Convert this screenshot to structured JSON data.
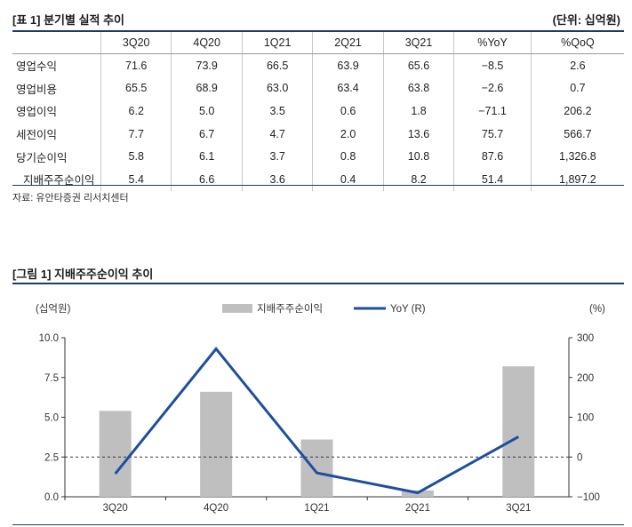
{
  "table": {
    "title": "[표 1] 분기별 실적 추이",
    "unit": "(단위: 십억원)",
    "headers": [
      "",
      "3Q20",
      "4Q20",
      "1Q21",
      "2Q21",
      "3Q21",
      "%YoY",
      "%QoQ"
    ],
    "rows": [
      {
        "label": "영업수익",
        "values": [
          "71.6",
          "73.9",
          "66.5",
          "63.9",
          "65.6",
          "−8.5",
          "2.6"
        ]
      },
      {
        "label": "영업비용",
        "values": [
          "65.5",
          "68.9",
          "63.0",
          "63.4",
          "63.8",
          "−2.6",
          "0.7"
        ]
      },
      {
        "label": "영업이익",
        "values": [
          "6.2",
          "5.0",
          "3.5",
          "0.6",
          "1.8",
          "−71.1",
          "206.2"
        ]
      },
      {
        "label": "세전이익",
        "values": [
          "7.7",
          "6.7",
          "4.7",
          "2.0",
          "13.6",
          "75.7",
          "566.7"
        ]
      },
      {
        "label": "당기순이익",
        "values": [
          "5.8",
          "6.1",
          "3.7",
          "0.8",
          "10.8",
          "87.6",
          "1,326.8"
        ]
      },
      {
        "label": "지배주주순이익",
        "values": [
          "5.4",
          "6.6",
          "3.6",
          "0.4",
          "8.2",
          "51.4",
          "1,897.2"
        ]
      }
    ],
    "source": "자료: 유안타증권 리서치센터"
  },
  "figure": {
    "title": "[그림 1] 지배주주순이익 추이"
  },
  "chart_data": {
    "type": "bar",
    "categories": [
      "3Q20",
      "4Q20",
      "1Q21",
      "2Q21",
      "3Q21"
    ],
    "series": [
      {
        "name": "지배주주순이익",
        "type": "bar",
        "axis": "left",
        "color": "#bfbfbf",
        "values": [
          5.4,
          6.6,
          3.6,
          0.4,
          8.2
        ]
      },
      {
        "name": "YoY (R)",
        "type": "line",
        "axis": "right",
        "color": "#1f4ea1",
        "values": [
          -42,
          272,
          -40,
          -90,
          51
        ]
      }
    ],
    "ylabel_left": "(십억원)",
    "ylabel_right": "(%)",
    "ylim_left": [
      0,
      10
    ],
    "ylim_right": [
      -100,
      300
    ],
    "yticks_left": [
      "0.0",
      "2.5",
      "5.0",
      "7.5",
      "10.0"
    ],
    "yticks_right": [
      "−100",
      "0",
      "100",
      "200",
      "300"
    ],
    "reference_line": {
      "axis": "left",
      "value": 2.5,
      "style": "dashed"
    },
    "legend": "top-center"
  }
}
